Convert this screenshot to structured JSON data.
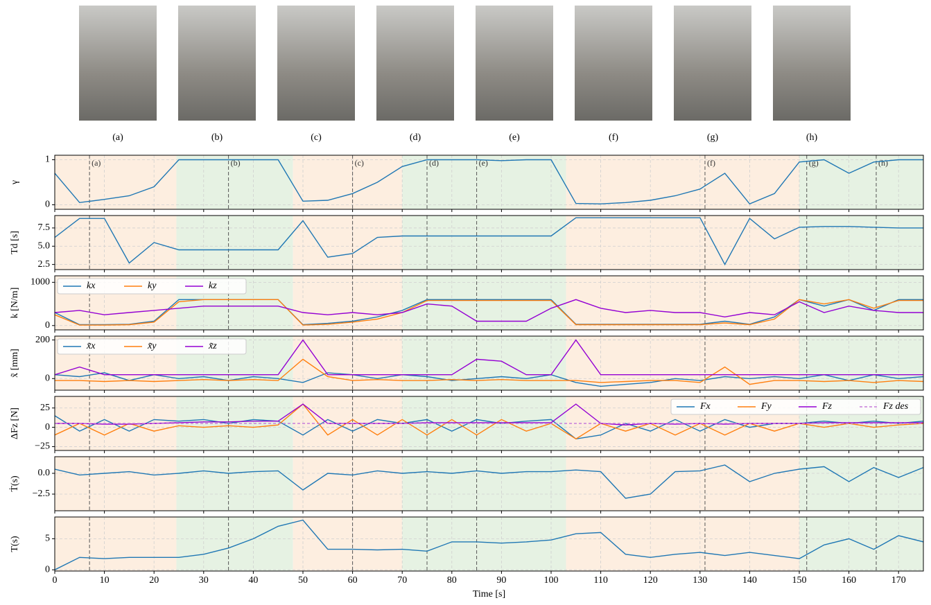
{
  "images": [
    {
      "caption": "(a)"
    },
    {
      "caption": "(b)"
    },
    {
      "caption": "(c)"
    },
    {
      "caption": "(d)"
    },
    {
      "caption": "(e)"
    },
    {
      "caption": "(f)"
    },
    {
      "caption": "(g)"
    },
    {
      "caption": "(h)"
    }
  ],
  "chart_data": {
    "type": "line",
    "xlabel": "Time [s]",
    "xlim": [
      0,
      175
    ],
    "xticks": [
      0,
      10,
      20,
      30,
      40,
      50,
      60,
      70,
      80,
      90,
      100,
      110,
      120,
      130,
      140,
      150,
      160,
      170
    ],
    "grid": true,
    "x": [
      0,
      5,
      10,
      15,
      20,
      25,
      30,
      35,
      40,
      45,
      50,
      55,
      60,
      65,
      70,
      75,
      80,
      85,
      90,
      95,
      100,
      105,
      110,
      115,
      120,
      125,
      130,
      135,
      140,
      145,
      150,
      155,
      160,
      165,
      170,
      175
    ],
    "regions": [
      {
        "start": 0,
        "end": 24.5,
        "color": "#fdeee0"
      },
      {
        "start": 24.5,
        "end": 48,
        "color": "#e6f2e3"
      },
      {
        "start": 48,
        "end": 70,
        "color": "#fdeee0"
      },
      {
        "start": 70,
        "end": 103,
        "color": "#e6f2e3"
      },
      {
        "start": 103,
        "end": 150,
        "color": "#fdeee0"
      },
      {
        "start": 150,
        "end": 175,
        "color": "#e6f2e3"
      }
    ],
    "events": [
      {
        "x": 7,
        "label": "(a)"
      },
      {
        "x": 35,
        "label": "(b)"
      },
      {
        "x": 60,
        "label": "(c)"
      },
      {
        "x": 75,
        "label": "(d)"
      },
      {
        "x": 85,
        "label": "(e)"
      },
      {
        "x": 131,
        "label": "(f)"
      },
      {
        "x": 151.5,
        "label": "(g)"
      },
      {
        "x": 165.5,
        "label": "(h)"
      }
    ],
    "panels": [
      {
        "ylabel": "γ",
        "ylim": [
          -0.1,
          1.1
        ],
        "yticks": [
          0,
          1
        ],
        "series": [
          {
            "color": "#1f77b4",
            "values": [
              0.7,
              0.05,
              0.12,
              0.2,
              0.4,
              1,
              1,
              1,
              1,
              1,
              0.08,
              0.1,
              0.25,
              0.5,
              0.85,
              1,
              1,
              1,
              0.98,
              1,
              1,
              0.03,
              0.02,
              0.05,
              0.1,
              0.2,
              0.35,
              0.7,
              0.02,
              0.25,
              0.95,
              1,
              0.7,
              0.95,
              1,
              1
            ]
          }
        ]
      },
      {
        "ylabel": "Td [s]",
        "ylim": [
          1.8,
          9.2
        ],
        "yticks": [
          2.5,
          {
            "value": 5,
            "label": "5.0"
          },
          7.5
        ],
        "series": [
          {
            "color": "#1f77b4",
            "values": [
              6.2,
              8.8,
              8.8,
              2.7,
              5.5,
              4.5,
              4.5,
              4.5,
              4.5,
              4.5,
              8.5,
              3.5,
              4,
              6.2,
              6.4,
              6.4,
              6.4,
              6.4,
              6.4,
              6.4,
              6.4,
              8.9,
              8.9,
              8.9,
              8.9,
              8.9,
              8.9,
              2.5,
              8.8,
              6,
              7.6,
              7.7,
              7.7,
              7.6,
              7.5,
              7.5
            ]
          }
        ]
      },
      {
        "ylabel": "k [N/m]",
        "ylim": [
          -100,
          1150
        ],
        "yticks": [
          0,
          1000
        ],
        "legend": "upper left",
        "series": [
          {
            "name": "kx",
            "color": "#1f77b4",
            "values": [
              300,
              20,
              20,
              30,
              100,
              600,
              600,
              600,
              600,
              600,
              20,
              50,
              100,
              200,
              350,
              600,
              600,
              600,
              600,
              600,
              600,
              30,
              30,
              30,
              30,
              30,
              30,
              100,
              30,
              200,
              600,
              450,
              600,
              350,
              600,
              600
            ]
          },
          {
            "name": "ky",
            "color": "#ff7f0e",
            "values": [
              250,
              10,
              10,
              20,
              80,
              550,
              600,
              600,
              600,
              600,
              10,
              30,
              80,
              150,
              300,
              580,
              580,
              580,
              580,
              580,
              580,
              20,
              20,
              20,
              20,
              20,
              20,
              60,
              20,
              150,
              600,
              500,
              600,
              400,
              580,
              580
            ]
          },
          {
            "name": "kz",
            "color": "#9400d3",
            "values": [
              300,
              350,
              250,
              300,
              350,
              400,
              450,
              450,
              450,
              450,
              300,
              250,
              300,
              250,
              300,
              500,
              450,
              100,
              100,
              100,
              400,
              600,
              400,
              300,
              350,
              300,
              300,
              200,
              300,
              250,
              550,
              300,
              450,
              350,
              300,
              300
            ]
          }
        ]
      },
      {
        "ylabel": "x̃ [mm]",
        "ylim": [
          -60,
          220
        ],
        "yticks": [
          0,
          200
        ],
        "legend": "upper left",
        "series": [
          {
            "name": "x̃x",
            "color": "#1f77b4",
            "values": [
              20,
              10,
              30,
              -10,
              20,
              0,
              10,
              -10,
              10,
              0,
              -20,
              30,
              20,
              0,
              20,
              10,
              -10,
              0,
              10,
              0,
              20,
              -20,
              -40,
              -30,
              -20,
              0,
              -10,
              10,
              0,
              10,
              0,
              20,
              -10,
              20,
              0,
              10
            ]
          },
          {
            "name": "x̃y",
            "color": "#ff7f0e",
            "values": [
              -10,
              -10,
              -15,
              -10,
              -15,
              -10,
              -5,
              -10,
              -5,
              -10,
              100,
              10,
              -10,
              -5,
              -10,
              -10,
              -5,
              -10,
              -5,
              -10,
              -10,
              -10,
              -20,
              -15,
              -10,
              -10,
              -20,
              60,
              -30,
              -10,
              -10,
              -15,
              -10,
              -20,
              -10,
              -15
            ]
          },
          {
            "name": "x̃z",
            "color": "#9400d3",
            "values": [
              20,
              60,
              20,
              20,
              20,
              20,
              20,
              20,
              20,
              20,
              200,
              20,
              20,
              20,
              20,
              20,
              20,
              100,
              90,
              20,
              20,
              200,
              20,
              20,
              20,
              20,
              20,
              20,
              20,
              20,
              20,
              20,
              20,
              20,
              20,
              20
            ]
          }
        ]
      },
      {
        "ylabel": "ΔFz [N]",
        "ylim": [
          -30,
          40
        ],
        "yticks": [
          {
            "value": -25,
            "label": "−25"
          },
          0,
          25
        ],
        "legend": "upper right",
        "series": [
          {
            "name": "Fx",
            "color": "#1f77b4",
            "values": [
              15,
              -5,
              10,
              -5,
              10,
              8,
              10,
              5,
              10,
              8,
              -10,
              10,
              -5,
              10,
              5,
              10,
              -5,
              10,
              5,
              8,
              10,
              -15,
              -10,
              5,
              -5,
              10,
              -5,
              10,
              0,
              5,
              5,
              8,
              5,
              8,
              5,
              8
            ]
          },
          {
            "name": "Fy",
            "color": "#ff7f0e",
            "values": [
              -10,
              5,
              -10,
              5,
              -5,
              2,
              0,
              2,
              0,
              3,
              30,
              -10,
              10,
              -10,
              10,
              -10,
              10,
              -10,
              10,
              -5,
              5,
              -15,
              5,
              -5,
              5,
              -10,
              5,
              -10,
              5,
              -5,
              5,
              0,
              5,
              0,
              3,
              5
            ]
          },
          {
            "name": "Fz",
            "color": "#9400d3",
            "values": [
              5,
              5,
              4,
              4,
              5,
              6,
              7,
              7,
              8,
              8,
              30,
              5,
              5,
              5,
              5,
              6,
              6,
              6,
              6,
              6,
              6,
              30,
              5,
              3,
              5,
              4,
              5,
              4,
              5,
              5,
              5,
              6,
              6,
              6,
              6,
              6
            ]
          },
          {
            "name": "Fz des",
            "color": "#c77dd9",
            "dash": true,
            "values": [
              5,
              5,
              5,
              5,
              5,
              5,
              5,
              5,
              5,
              5,
              5,
              5,
              5,
              5,
              5,
              5,
              5,
              5,
              5,
              5,
              5,
              5,
              5,
              5,
              5,
              5,
              5,
              5,
              5,
              5,
              5,
              5,
              5,
              5,
              5,
              5
            ]
          }
        ]
      },
      {
        "ylabel": "Ṫ(s)",
        "ylim": [
          -4.5,
          2
        ],
        "yticks": [
          {
            "value": -2.5,
            "label": "−2.5"
          },
          {
            "value": 0,
            "label": "0.0"
          }
        ],
        "series": [
          {
            "color": "#1f77b4",
            "values": [
              0.5,
              -0.2,
              0,
              0.2,
              -0.2,
              0,
              0.3,
              0,
              0.2,
              0.3,
              -2,
              0,
              -0.2,
              0.3,
              0,
              0.2,
              0,
              0.3,
              0,
              0.2,
              0.2,
              0.4,
              0.2,
              -3,
              -2.5,
              0.2,
              0.3,
              1,
              -1,
              0,
              0.5,
              0.8,
              -1,
              0.7,
              -0.5,
              0.7
            ]
          }
        ]
      },
      {
        "ylabel": "T(s)",
        "ylim": [
          -0.2,
          8.5
        ],
        "yticks": [
          0,
          5
        ],
        "series": [
          {
            "color": "#1f77b4",
            "values": [
              0,
              2,
              1.8,
              2,
              2,
              2,
              2.5,
              3.5,
              5,
              7,
              8,
              3.3,
              3.3,
              3.2,
              3.3,
              3,
              4.5,
              4.5,
              4.3,
              4.5,
              4.8,
              5.8,
              6,
              2.5,
              2,
              2.5,
              2.8,
              2.3,
              2.8,
              2.3,
              1.8,
              4,
              5,
              3.3,
              5.5,
              4.5
            ]
          }
        ]
      }
    ]
  }
}
